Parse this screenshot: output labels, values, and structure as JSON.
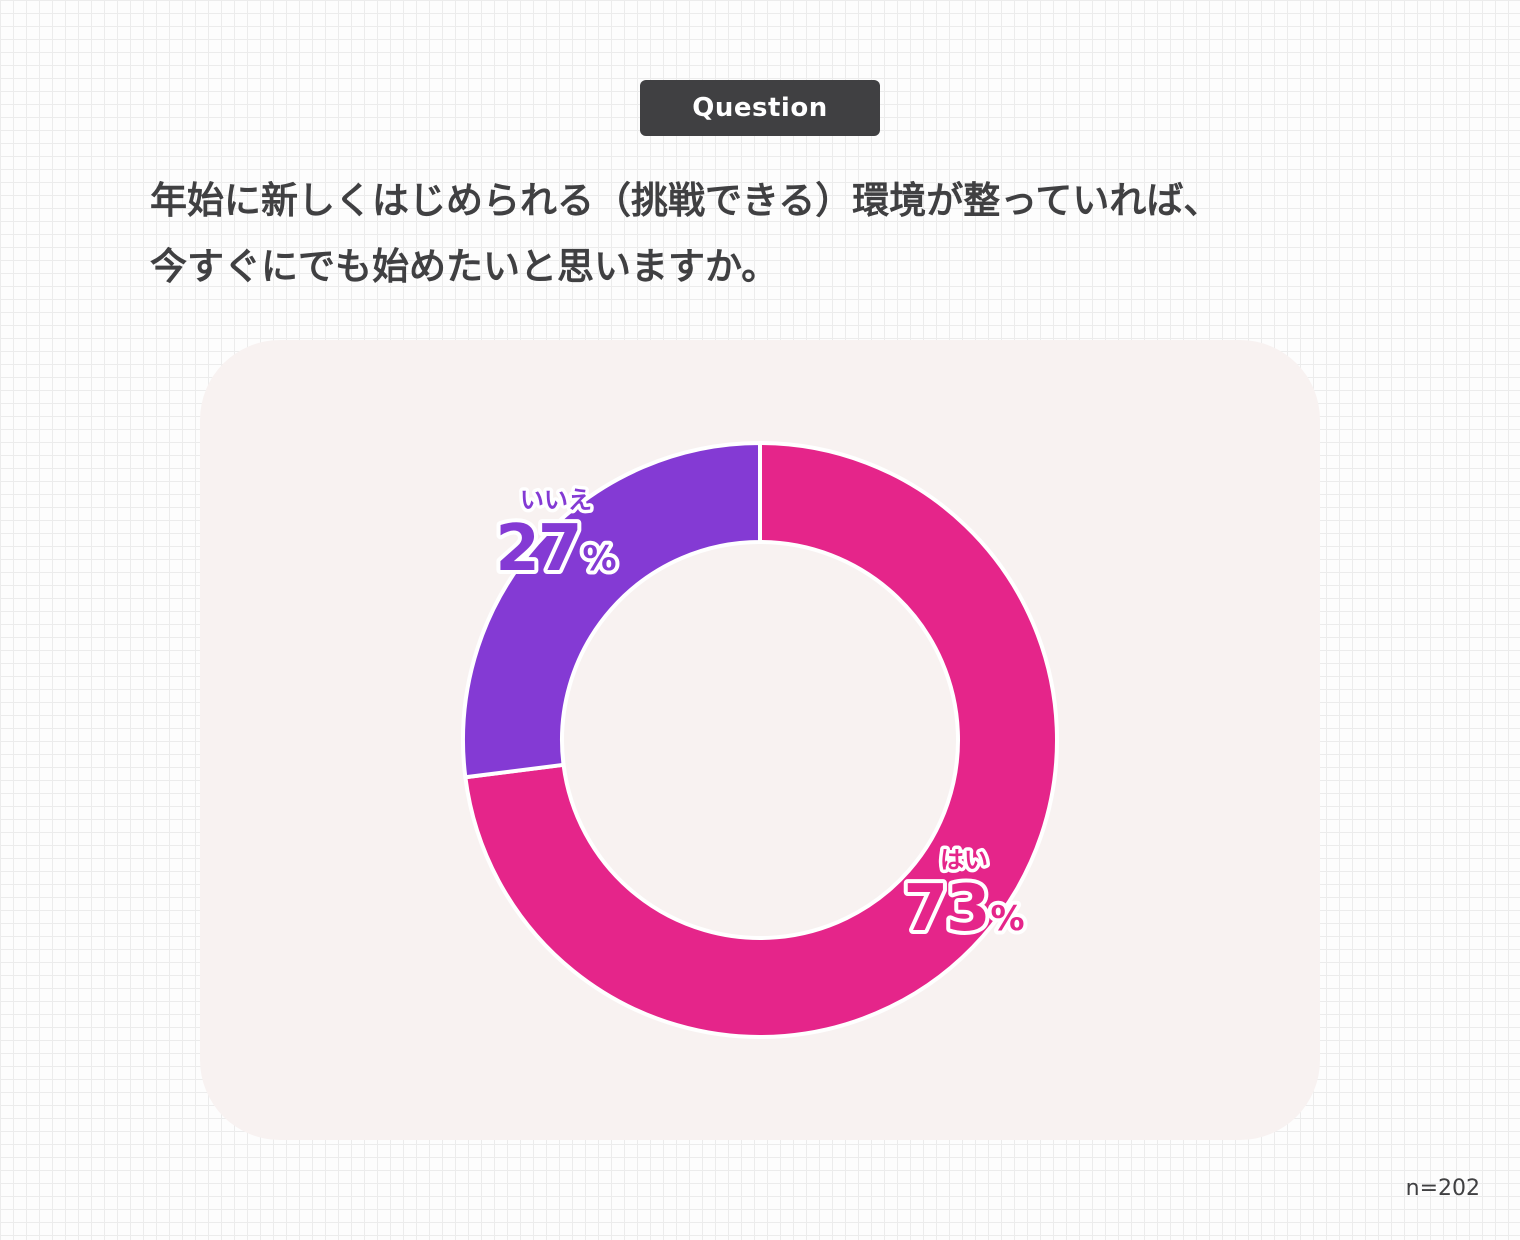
{
  "badge": {
    "label": "Question"
  },
  "question": {
    "line1": "年始に新しくはじめられる（挑戦できる）環境が整っていれば、",
    "line2": "今すぐにでも始めたいと思いますか。"
  },
  "sample_size": "n=202",
  "colors": {
    "yes": "#e5258a",
    "no": "#843ad4",
    "panel": "#f8f2f1",
    "text": "#404042"
  },
  "chart_data": {
    "type": "pie",
    "title": "",
    "categories": [
      "はい",
      "いいえ"
    ],
    "values": [
      73,
      27
    ],
    "labels": [
      {
        "category": "はい",
        "value": "73",
        "unit": "%"
      },
      {
        "category": "いいえ",
        "value": "27",
        "unit": "%"
      }
    ],
    "colors": [
      "#e5258a",
      "#843ad4"
    ],
    "donut": true,
    "start": "12 o'clock",
    "direction": "clockwise"
  }
}
